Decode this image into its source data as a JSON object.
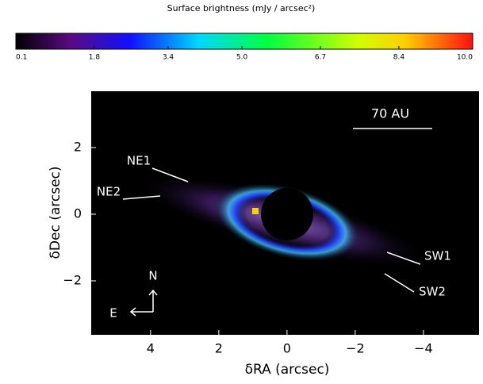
{
  "chart_data": {
    "type": "image",
    "colorbar": {
      "title": "Surface brightness (mJy / arcsec²)",
      "lim": [
        0.1,
        10
      ],
      "ticks": [
        0.1,
        1.8,
        3.4,
        {
          "value": 5,
          "label": "5.0"
        },
        6.7,
        8.4,
        {
          "value": 10,
          "label": "10.0"
        }
      ]
    },
    "x_label": "δRA (arcsec)",
    "y_label": "δDec (arcsec)",
    "xlim": [
      5.74,
      -5.63
    ],
    "ylim": [
      -3.62,
      3.69
    ],
    "xticks": [
      4,
      2,
      0,
      {
        "value": -2,
        "label": "−2"
      },
      {
        "value": -4,
        "label": "−4"
      }
    ],
    "yticks": [
      {
        "value": -2,
        "label": "−2"
      },
      0,
      2
    ],
    "annotations": {
      "scale": "70 AU",
      "ne1": "NE1",
      "ne2": "NE2",
      "sw1": "SW1",
      "sw2": "SW2",
      "north": "N",
      "east": "E"
    }
  }
}
